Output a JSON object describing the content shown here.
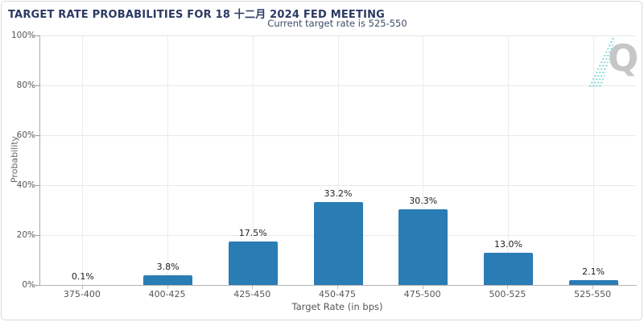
{
  "header": {
    "title": "TARGET RATE PROBABILITIES FOR 18 十二月 2024 FED MEETING",
    "subtitle": "Current target rate is 525-550"
  },
  "watermark": {
    "letter": "Q"
  },
  "chart_data": {
    "type": "bar",
    "title": "TARGET RATE PROBABILITIES FOR 18 十二月 2024 FED MEETING",
    "subtitle": "Current target rate is 525-550",
    "xlabel": "Target Rate (in bps)",
    "ylabel": "Probability",
    "categories": [
      "375-400",
      "400-425",
      "425-450",
      "450-475",
      "475-500",
      "500-525",
      "525-550"
    ],
    "values": [
      0.1,
      3.8,
      17.5,
      33.2,
      30.3,
      13.0,
      2.1
    ],
    "value_labels": [
      "0.1%",
      "3.8%",
      "17.5%",
      "33.2%",
      "30.3%",
      "13.0%",
      "2.1%"
    ],
    "ylim": [
      0,
      100
    ],
    "ytick_labels": [
      "0%",
      "20%",
      "40%",
      "60%",
      "80%",
      "100%"
    ],
    "grid": true,
    "legend": false,
    "bar_color": "#2a7cb5"
  },
  "colors": {
    "bar": "#2a7cb5",
    "title_text": "#2c3963",
    "subtitle_text": "#3e4a66",
    "axis_text": "#555555",
    "gridline": "#e8e8e8",
    "axis_line": "#b3b3b3",
    "watermark_gray": "#c6c6c6",
    "watermark_teal": "#8ed8d8",
    "card_border": "#d9d9d9"
  }
}
